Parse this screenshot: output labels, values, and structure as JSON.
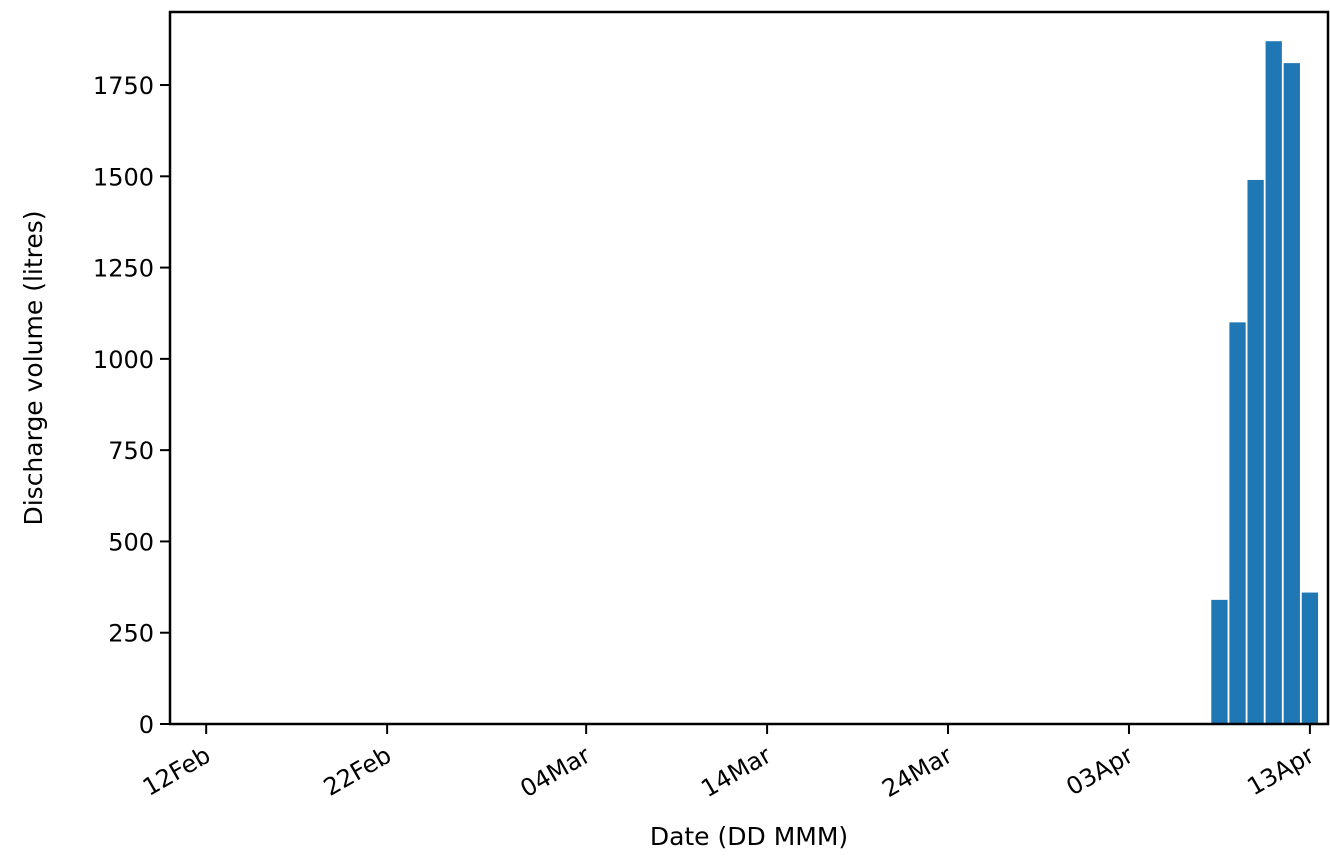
{
  "chart_data": {
    "type": "bar",
    "title": "",
    "xlabel": "Date (DD MMM)",
    "ylabel": "Discharge volume (litres)",
    "x": [
      "2024-04-08",
      "2024-04-09",
      "2024-04-10",
      "2024-04-11",
      "2024-04-12",
      "2024-04-13"
    ],
    "values": [
      340,
      1100,
      1490,
      1870,
      1810,
      360
    ],
    "xlim": [
      "2024-02-10",
      "2024-04-14"
    ],
    "ylim": [
      0,
      1950
    ],
    "xticks": [
      {
        "date": "2024-02-12",
        "label": "12Feb"
      },
      {
        "date": "2024-02-22",
        "label": "22Feb"
      },
      {
        "date": "2024-03-04",
        "label": "04Mar"
      },
      {
        "date": "2024-03-14",
        "label": "14Mar"
      },
      {
        "date": "2024-03-24",
        "label": "24Mar"
      },
      {
        "date": "2024-04-03",
        "label": "03Apr"
      },
      {
        "date": "2024-04-13",
        "label": "13Apr"
      }
    ],
    "yticks": [
      0,
      250,
      500,
      750,
      1000,
      1250,
      1500,
      1750
    ],
    "color": "#1f77b4",
    "grid": false,
    "legend": "none"
  }
}
